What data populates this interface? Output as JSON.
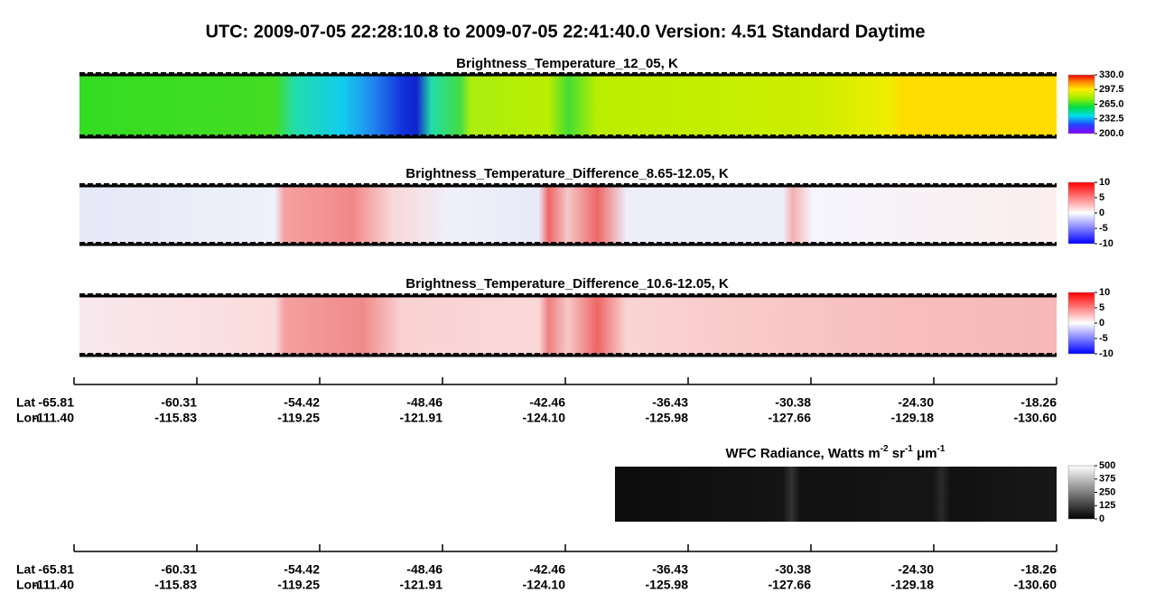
{
  "title": "UTC:  2009-07-05   22:28:10.8  to  2009-07-05   22:41:40.0    Version: 4.51  Standard Daytime",
  "chart_data": [
    {
      "type": "heatmap",
      "title": "Brightness_Temperature_12_05, K",
      "colorbar": {
        "lim": [
          200,
          330
        ],
        "ticks": [
          {
            "value": 330,
            "label": "330.0"
          },
          {
            "value": 297.5,
            "label": "297.5"
          },
          {
            "value": 265,
            "label": "265.0"
          },
          {
            "value": 232.5,
            "label": "232.5"
          },
          {
            "value": 200,
            "label": "200.0"
          }
        ]
      }
    },
    {
      "type": "heatmap",
      "title": "Brightness_Temperature_Difference_8.65-12.05, K",
      "colorbar": {
        "lim": [
          -10,
          10
        ],
        "ticks": [
          10,
          5,
          0,
          -5,
          -10
        ]
      }
    },
    {
      "type": "heatmap",
      "title": "Brightness_Temperature_Difference_10.6-12.05, K",
      "colorbar": {
        "lim": [
          -10,
          10
        ],
        "ticks": [
          10,
          5,
          0,
          -5,
          -10
        ]
      }
    },
    {
      "type": "heatmap",
      "title_parts": [
        "WFC Radiance, Watts m",
        "-2",
        " sr",
        "-1",
        " μm",
        "-1"
      ],
      "colorbar": {
        "lim": [
          0,
          500
        ],
        "ticks": [
          500,
          375,
          250,
          125,
          0
        ]
      }
    }
  ],
  "axes": [
    {
      "lat_label": "Lat",
      "lon_label": "Lon",
      "lat": [
        -65.81,
        -60.31,
        -54.42,
        -48.46,
        -42.46,
        -36.43,
        -30.38,
        -24.3,
        -18.26
      ],
      "lat_labels": [
        "-65.81",
        "-60.31",
        "-54.42",
        "-48.46",
        "-42.46",
        "-36.43",
        "-30.38",
        "-24.30",
        "-18.26"
      ],
      "lon": [
        {
          "value": -111.4,
          "label": "-111.40"
        },
        -115.83,
        -119.25,
        -121.91,
        {
          "value": -124.1,
          "label": "-124.10"
        },
        -125.98,
        -127.66,
        -129.18,
        {
          "value": -130.6,
          "label": "-130.60"
        }
      ]
    },
    {
      "lat_label": "Lat",
      "lon_label": "Lon",
      "lat": [
        -65.81,
        -60.31,
        -54.42,
        -48.46,
        -42.46,
        -36.43,
        -30.38,
        -24.3,
        -18.26
      ],
      "lat_labels": [
        "-65.81",
        "-60.31",
        "-54.42",
        "-48.46",
        "-42.46",
        "-36.43",
        "-30.38",
        "-24.30",
        "-18.26"
      ],
      "lon": [
        {
          "value": -111.4,
          "label": "-111.40"
        },
        -115.83,
        -119.25,
        -121.91,
        {
          "value": -124.1,
          "label": "-124.10"
        },
        -125.98,
        -127.66,
        -129.18,
        {
          "value": -130.6,
          "label": "-130.60"
        }
      ]
    }
  ]
}
